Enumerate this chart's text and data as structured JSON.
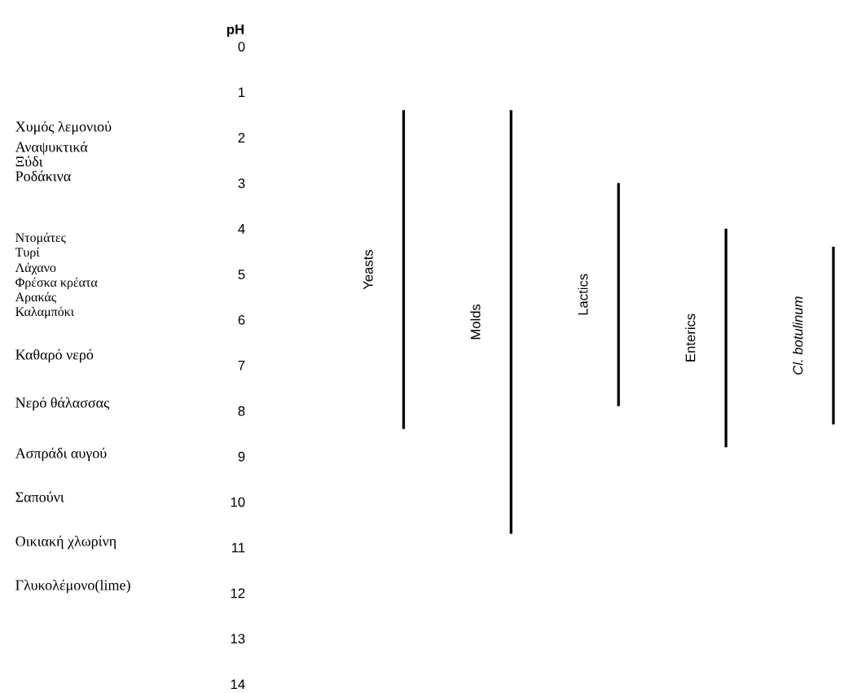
{
  "chart_data": {
    "type": "bar",
    "ylabel": "pH",
    "categories": [
      "Yeasts",
      "Molds",
      "Lactics",
      "Enterics",
      "Cl. botulinum"
    ],
    "base": [
      1.4,
      1.4,
      3.0,
      4.0,
      4.4
    ],
    "values": [
      7.0,
      9.3,
      4.9,
      4.8,
      3.9
    ],
    "color": "#000000",
    "ylim": [
      14,
      0
    ],
    "yticks": [
      0,
      1,
      2,
      3,
      4,
      5,
      6,
      7,
      8,
      9,
      10,
      11,
      12,
      13,
      14
    ],
    "tick_labels": "y",
    "grid": false,
    "annotations": [
      "Χυμός λεμονιού",
      "Αναψυκτικά",
      "Ξύδι",
      "Ροδάκινα",
      "Ντομάτες",
      "Τυρί",
      "Λάχανο",
      "Φρέσκα κρέατα",
      "Αρακάς",
      "Καλαμπόκι",
      "Καθαρό νερό",
      "Νερό θάλασσας",
      "Ασπράδι αυγού",
      "Σαπούνι",
      "Οικιακή χλωρίνη",
      "Γλυκολέμονο(lime)"
    ]
  }
}
